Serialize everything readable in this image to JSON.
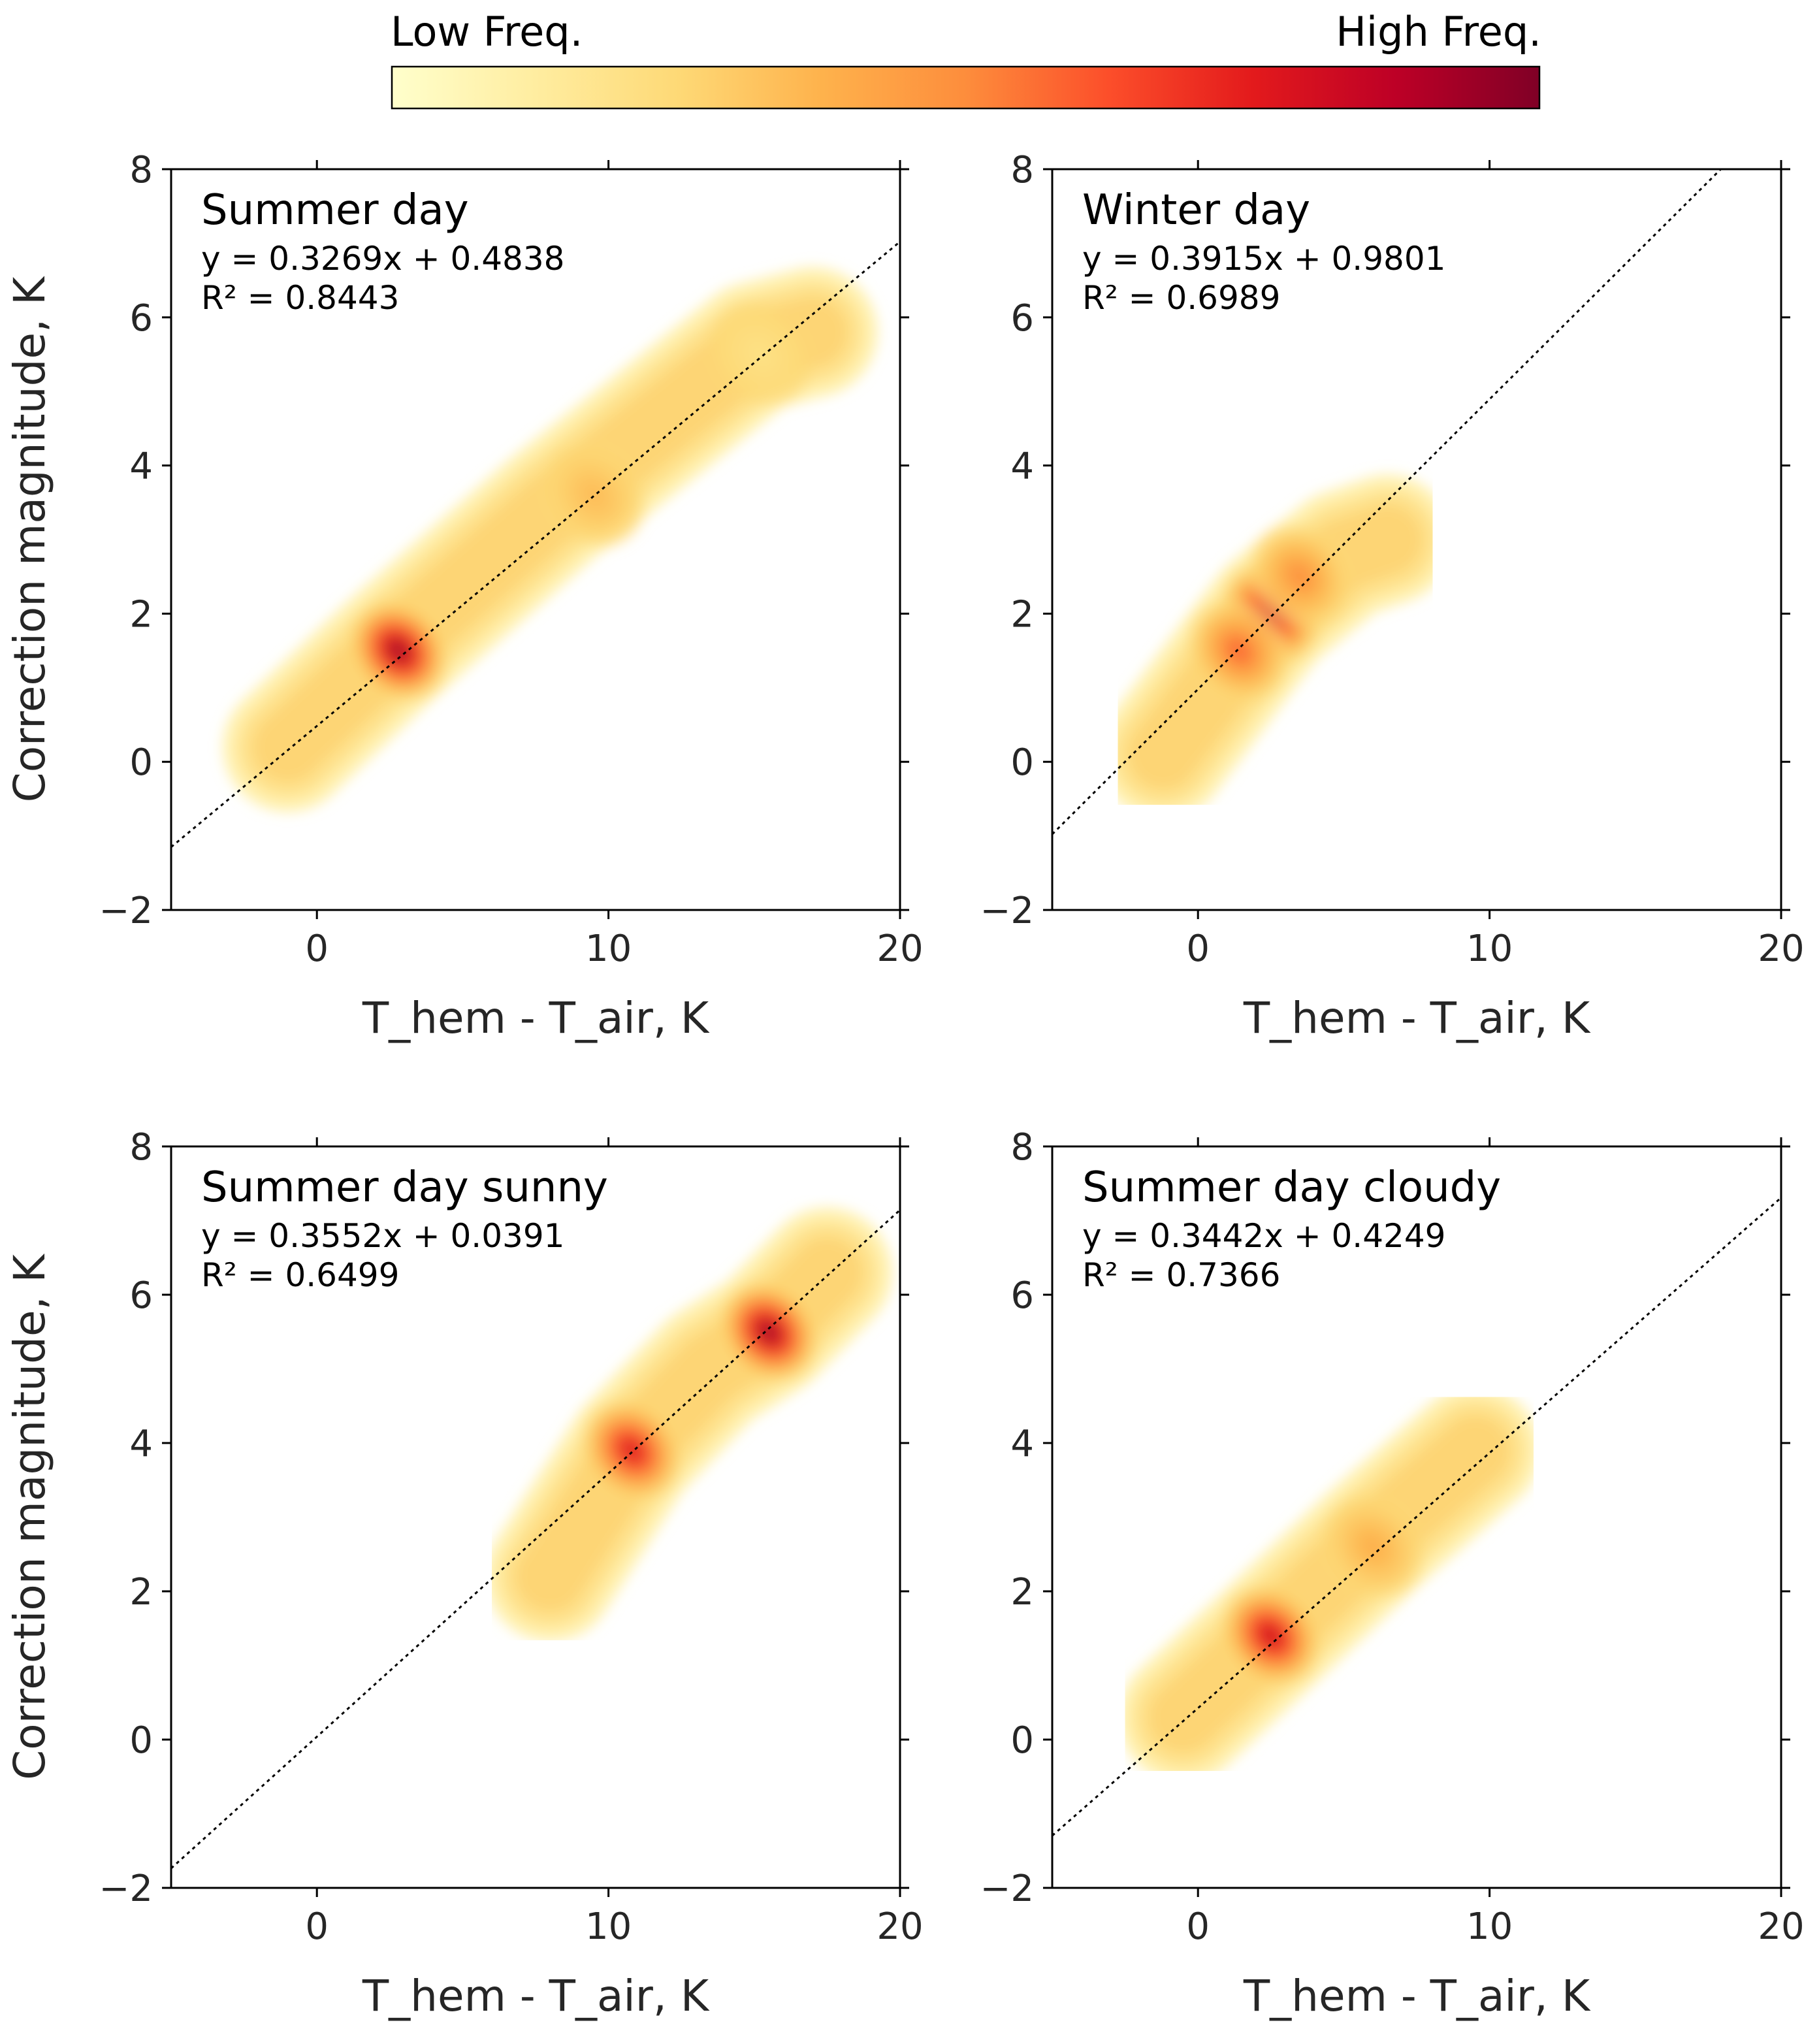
{
  "colorbar": {
    "low_label": "Low Freq.",
    "high_label": "High Freq.",
    "colormap": "YlOrRd",
    "colors": [
      "#ffffcc",
      "#ffeda0",
      "#fed976",
      "#feb24c",
      "#fd8d3c",
      "#fc4e2a",
      "#e31a1c",
      "#bd0026",
      "#800026"
    ]
  },
  "chart_data": [
    {
      "type": "density-contour",
      "title": "Summer day",
      "equation": "y = 0.3269x + 0.4838",
      "r_squared": "R² = 0.8443",
      "xlabel": "T_hem - T_air, K",
      "ylabel": "Correction magnitude, K",
      "xlim": [
        -5,
        20
      ],
      "ylim": [
        -2,
        8
      ],
      "xticks": [
        0,
        10,
        20
      ],
      "yticks": [
        -2,
        0,
        2,
        4,
        6,
        8
      ],
      "fit_line": {
        "slope": 0.3269,
        "intercept": 0.4838,
        "style": "dotted"
      },
      "density_ridge": [
        [
          -1,
          0.2
        ],
        [
          2.5,
          1.5
        ],
        [
          8,
          3.4
        ],
        [
          15,
          5.6
        ],
        [
          17,
          5.8
        ]
      ],
      "density_peaks": [
        {
          "x": 2.8,
          "y": 1.5,
          "level": 0.95
        },
        {
          "x": 9.5,
          "y": 3.6,
          "level": 0.35
        },
        {
          "x": 15.2,
          "y": 5.5,
          "level": 0.2
        }
      ]
    },
    {
      "type": "density-contour",
      "title": "Winter day",
      "equation": "y = 0.3915x + 0.9801",
      "r_squared": "R² = 0.6989",
      "xlabel": "T_hem - T_air, K",
      "ylabel": "",
      "xlim": [
        -5,
        20
      ],
      "ylim": [
        -2,
        8
      ],
      "xticks": [
        0,
        10,
        20
      ],
      "yticks": [
        -2,
        0,
        2,
        4,
        6,
        8
      ],
      "fit_line": {
        "slope": 0.3915,
        "intercept": 0.9801,
        "style": "dotted"
      },
      "density_ridge": [
        [
          -1.2,
          0.1
        ],
        [
          1.5,
          1.5
        ],
        [
          2.5,
          2.0
        ],
        [
          5,
          2.8
        ],
        [
          6.5,
          3.0
        ]
      ],
      "density_peaks": [
        {
          "x": 2.5,
          "y": 2.0,
          "level": 0.85
        },
        {
          "x": 1.4,
          "y": 1.5,
          "level": 0.6
        },
        {
          "x": 3.5,
          "y": 2.5,
          "level": 0.5
        }
      ]
    },
    {
      "type": "density-contour",
      "title": "Summer day sunny",
      "equation": "y = 0.3552x + 0.0391",
      "r_squared": "R² = 0.6499",
      "xlabel": "T_hem - T_air, K",
      "ylabel": "Correction magnitude, K",
      "xlim": [
        -5,
        20
      ],
      "ylim": [
        -2,
        8
      ],
      "xticks": [
        0,
        10,
        20
      ],
      "yticks": [
        -2,
        0,
        2,
        4,
        6,
        8
      ],
      "fit_line": {
        "slope": 0.3552,
        "intercept": 0.0391,
        "style": "dotted"
      },
      "density_ridge": [
        [
          8,
          2.2
        ],
        [
          10.8,
          3.9
        ],
        [
          13.5,
          5.0
        ],
        [
          15.5,
          5.5
        ],
        [
          17.5,
          6.3
        ]
      ],
      "density_peaks": [
        {
          "x": 10.8,
          "y": 3.9,
          "level": 0.8
        },
        {
          "x": 15.5,
          "y": 5.5,
          "level": 0.95
        }
      ]
    },
    {
      "type": "density-contour",
      "title": "Summer day cloudy",
      "equation": "y = 0.3442x + 0.4249",
      "r_squared": "R² = 0.7366",
      "xlabel": "T_hem - T_air, K",
      "ylabel": "",
      "xlim": [
        -5,
        20
      ],
      "ylim": [
        -2,
        8
      ],
      "xticks": [
        0,
        10,
        20
      ],
      "yticks": [
        -2,
        0,
        2,
        4,
        6,
        8
      ],
      "fit_line": {
        "slope": 0.3442,
        "intercept": 0.4249,
        "style": "dotted"
      },
      "density_ridge": [
        [
          -0.5,
          0.3
        ],
        [
          2.5,
          1.4
        ],
        [
          6,
          2.7
        ],
        [
          9.5,
          3.9
        ]
      ],
      "density_peaks": [
        {
          "x": 2.5,
          "y": 1.4,
          "level": 0.85
        },
        {
          "x": 6.0,
          "y": 2.6,
          "level": 0.4
        }
      ]
    }
  ]
}
